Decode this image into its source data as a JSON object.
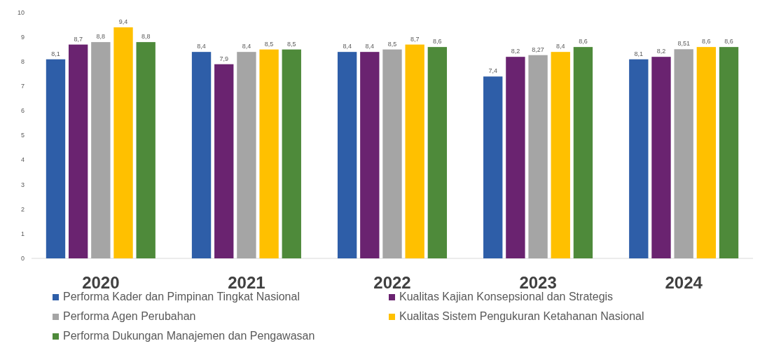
{
  "chart_data": {
    "type": "bar",
    "categories": [
      "2020",
      "2021",
      "2022",
      "2023",
      "2024"
    ],
    "series": [
      {
        "name": "Performa Kader dan Pimpinan Tingkat Nasional",
        "color": "#2e5ea8",
        "values": [
          8.1,
          8.4,
          8.4,
          7.4,
          8.1
        ],
        "value_labels": [
          "8,1",
          "8,4",
          "8,4",
          "7,4",
          "8,1"
        ]
      },
      {
        "name": "Kualitas Kajian Konsepsional dan Strategis",
        "color": "#6a2370",
        "values": [
          8.7,
          7.9,
          8.4,
          8.2,
          8.2
        ],
        "value_labels": [
          "8,7",
          "7,9",
          "8,4",
          "8,2",
          "8,2"
        ]
      },
      {
        "name": "Performa Agen Perubahan",
        "color": "#a5a5a5",
        "values": [
          8.8,
          8.4,
          8.5,
          8.27,
          8.51
        ],
        "value_labels": [
          "8,8",
          "8,4",
          "8,5",
          "8,27",
          "8,51"
        ]
      },
      {
        "name": "Kualitas Sistem Pengukuran Ketahanan Nasional",
        "color": "#ffc000",
        "values": [
          9.4,
          8.5,
          8.7,
          8.4,
          8.6
        ],
        "value_labels": [
          "9,4",
          "8,5",
          "8,7",
          "8,4",
          "8,6"
        ]
      },
      {
        "name": "Performa Dukungan Manajemen dan Pengawasan",
        "color": "#4e8a3a",
        "values": [
          8.8,
          8.5,
          8.6,
          8.6,
          8.6
        ],
        "value_labels": [
          "8,8",
          "8,5",
          "8,6",
          "8,6",
          "8,6"
        ]
      }
    ],
    "ylim": [
      0,
      10
    ],
    "yticks": [
      0,
      1,
      2,
      3,
      4,
      5,
      6,
      7,
      8,
      9,
      10
    ],
    "legend": "bottom"
  }
}
